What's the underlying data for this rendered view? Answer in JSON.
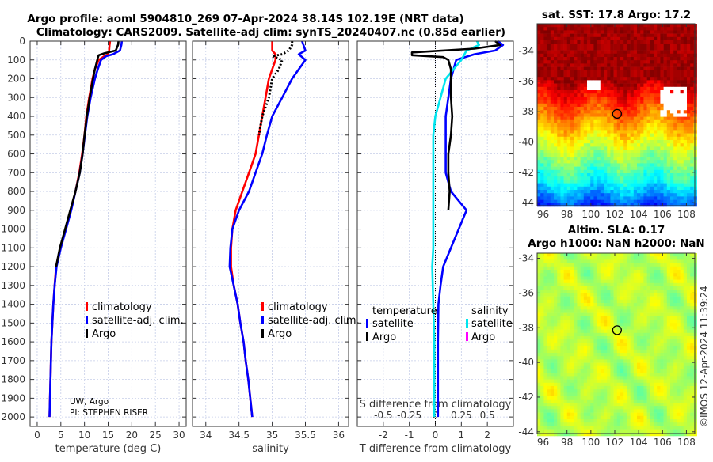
{
  "title_line1": "Argo profile: aoml 5904810_269 07-Apr-2024 38.14S 102.19E (NRT data)",
  "title_line2": "Climatology: CARS2009. Satellite-adj clim: synTS_20240407.nc (0.85d earlier)",
  "credit_line1": "UW, Argo",
  "credit_line2": "PI: STEPHEN RISER",
  "imos_stamp": "©IMOS 12-Apr-2024 11:39:24",
  "colors": {
    "climatology": "#ff0000",
    "satellite": "#0000ff",
    "argo": "#000000",
    "sal_satellite": "#00e5ee",
    "sal_argo": "#ff00ff",
    "grid": "#b8c4e6"
  },
  "chart_data": [
    {
      "type": "line",
      "id": "temperature",
      "xlabel": "temperature (deg C)",
      "xlim": [
        -1.5,
        31.5
      ],
      "ylim": [
        2050,
        0
      ],
      "xticks": [
        0,
        5,
        10,
        15,
        20,
        25,
        30
      ],
      "yticks": [
        0,
        100,
        200,
        300,
        400,
        500,
        600,
        700,
        800,
        900,
        1000,
        1100,
        1200,
        1300,
        1400,
        1500,
        1600,
        1700,
        1800,
        1900,
        2000
      ],
      "legend": [
        "climatology",
        "satellite-adj. clim.",
        "Argo"
      ],
      "series": [
        {
          "name": "climatology",
          "color": "#ff0000",
          "depth": [
            0,
            20,
            50,
            70,
            80,
            100,
            150,
            200,
            300,
            400,
            500,
            600,
            700,
            800,
            900,
            1000,
            1100,
            1200,
            1300,
            1400,
            1500,
            1600,
            1700,
            1800,
            1900,
            2000
          ],
          "values": [
            15.4,
            15.3,
            15.2,
            15.0,
            14.2,
            13.0,
            12.2,
            11.7,
            11.0,
            10.4,
            10.0,
            9.5,
            8.9,
            8.1,
            7.1,
            6.0,
            4.9,
            4.0,
            3.7,
            3.4,
            3.2,
            3.0,
            2.9,
            2.8,
            2.7,
            2.6
          ]
        },
        {
          "name": "satellite-adj. clim.",
          "color": "#0000ff",
          "depth": [
            0,
            20,
            50,
            70,
            80,
            100,
            150,
            200,
            300,
            400,
            500,
            600,
            700,
            800,
            900,
            1000,
            1100,
            1200,
            1300,
            1400,
            1500,
            1600,
            1700,
            1800,
            1900,
            2000
          ],
          "values": [
            17.9,
            17.8,
            17.5,
            16.0,
            14.6,
            13.5,
            12.8,
            12.2,
            11.3,
            10.6,
            10.1,
            9.6,
            9.0,
            8.1,
            7.2,
            6.1,
            5.0,
            4.1,
            3.7,
            3.4,
            3.2,
            3.0,
            2.9,
            2.8,
            2.7,
            2.6
          ]
        },
        {
          "name": "Argo",
          "color": "#000000",
          "depth": [
            0,
            20,
            50,
            65,
            75,
            90,
            100,
            150,
            200,
            300,
            400,
            500,
            600,
            700,
            800,
            900,
            1000,
            1100,
            1200
          ],
          "values": [
            17.2,
            17.1,
            16.6,
            14.2,
            13.0,
            12.8,
            12.7,
            12.2,
            11.8,
            11.1,
            10.5,
            10.0,
            9.6,
            9.0,
            8.1,
            7.0,
            5.9,
            4.8,
            4.0
          ]
        }
      ]
    },
    {
      "type": "line",
      "id": "salinity",
      "xlabel": "salinity",
      "xlim": [
        33.8,
        36.15
      ],
      "ylim": [
        2050,
        0
      ],
      "xticks": [
        34,
        34.5,
        35,
        35.5,
        36
      ],
      "legend": [
        "climatology",
        "satellite-adj. clim.",
        "Argo"
      ],
      "series": [
        {
          "name": "climatology",
          "color": "#ff0000",
          "depth": [
            0,
            50,
            70,
            100,
            150,
            200,
            300,
            400,
            500,
            600,
            700,
            800,
            900,
            1000,
            1100,
            1200,
            1300,
            1400,
            1500,
            1600,
            1700,
            1800,
            1900,
            2000
          ],
          "values": [
            35.0,
            35.0,
            35.05,
            35.05,
            35.0,
            34.95,
            34.9,
            34.85,
            34.8,
            34.75,
            34.65,
            34.55,
            34.45,
            34.4,
            34.38,
            34.38,
            34.42,
            34.48,
            34.52,
            34.57,
            34.6,
            34.64,
            34.67,
            34.7
          ]
        },
        {
          "name": "satellite-adj. clim.",
          "color": "#0000ff",
          "depth": [
            0,
            50,
            70,
            100,
            150,
            200,
            300,
            400,
            500,
            600,
            700,
            800,
            900,
            1000,
            1100,
            1200,
            1300,
            1400,
            1500,
            1600,
            1700,
            1800,
            1900,
            2000
          ],
          "values": [
            35.45,
            35.5,
            35.4,
            35.5,
            35.4,
            35.3,
            35.15,
            35.0,
            34.92,
            34.85,
            34.75,
            34.65,
            34.5,
            34.4,
            34.37,
            34.36,
            34.42,
            34.48,
            34.52,
            34.57,
            34.6,
            34.64,
            34.67,
            34.7
          ]
        },
        {
          "name": "Argo",
          "color": "#000000",
          "dashed": true,
          "depth": [
            0,
            20,
            50,
            70,
            80,
            100,
            150,
            200,
            300,
            400,
            500
          ],
          "values": [
            35.3,
            35.3,
            35.25,
            35.15,
            35.0,
            35.15,
            35.1,
            35.0,
            34.95,
            34.85,
            34.8
          ]
        }
      ]
    },
    {
      "type": "line",
      "id": "difference",
      "xlabel": "T difference from climatology",
      "xlabel_top": "S difference from climatology",
      "xlim": [
        -3,
        3
      ],
      "ylim": [
        2050,
        0
      ],
      "xticks": [
        -2,
        -1,
        0,
        1,
        2
      ],
      "xticks_top": [
        "-0.5",
        "-0.25",
        "0",
        "0.25",
        "0.5"
      ],
      "legend_temperature_title": "temperature",
      "legend_salinity_title": "salinity",
      "legend_temperature": [
        "satellite",
        "Argo"
      ],
      "legend_salinity": [
        "satellite",
        "Argo"
      ],
      "series": [
        {
          "name": "T satellite",
          "color": "#0000ff",
          "units": "T",
          "depth": [
            0,
            20,
            50,
            70,
            100,
            200,
            300,
            400,
            500,
            600,
            700,
            800,
            900,
            1000,
            1100,
            1200,
            1300,
            1400,
            1600,
            1800,
            2000
          ],
          "values": [
            2.4,
            2.6,
            2.3,
            1.5,
            0.8,
            0.6,
            0.5,
            0.4,
            0.4,
            0.4,
            0.4,
            0.6,
            1.2,
            0.9,
            0.6,
            0.3,
            0.2,
            0.12,
            0.1,
            0.1,
            0.1
          ]
        },
        {
          "name": "S satellite",
          "color": "#00e5ee",
          "units": "S",
          "depth": [
            0,
            20,
            50,
            100,
            200,
            300,
            400,
            500,
            700,
            900,
            1100,
            1200,
            1400,
            1600,
            1800,
            2000
          ],
          "values": [
            0.4,
            0.42,
            0.3,
            0.25,
            0.1,
            0.05,
            0.0,
            -0.02,
            -0.02,
            -0.02,
            -0.02,
            -0.03,
            -0.02,
            -0.01,
            -0.01,
            -0.01
          ]
        },
        {
          "name": "T Argo",
          "color": "#000000",
          "units": "T",
          "depth": [
            0,
            20,
            40,
            60,
            75,
            85,
            100,
            150,
            200,
            300,
            400,
            500,
            600,
            700,
            800,
            900
          ],
          "values": [
            2.3,
            2.5,
            1.5,
            -0.9,
            -0.9,
            0.3,
            0.5,
            0.6,
            0.6,
            0.6,
            0.65,
            0.6,
            0.5,
            0.5,
            0.55,
            0.5
          ]
        }
      ]
    },
    {
      "type": "heatmap",
      "id": "sst_map",
      "title": "sat. SST: 17.8 Argo: 17.2",
      "xticks": [
        96,
        98,
        100,
        102,
        104,
        106,
        108
      ],
      "yticks": [
        -34,
        -36,
        -38,
        -40,
        -42,
        -44
      ],
      "xlim": [
        95.5,
        108.7
      ],
      "ylim": [
        -44.2,
        -32.2
      ],
      "marker": {
        "lon": 102.19,
        "lat": -38.14
      }
    },
    {
      "type": "heatmap",
      "id": "sla_map",
      "title_line1": "Altim. SLA: 0.17",
      "title_line2": "Argo h1000: NaN h2000: NaN",
      "xticks": [
        96,
        98,
        100,
        102,
        104,
        106,
        108
      ],
      "yticks": [
        -34,
        -36,
        -38,
        -40,
        -42,
        -44
      ],
      "xlim": [
        95.5,
        108.7
      ],
      "ylim": [
        -44.1,
        -33.7
      ],
      "marker": {
        "lon": 102.19,
        "lat": -38.14
      }
    }
  ]
}
